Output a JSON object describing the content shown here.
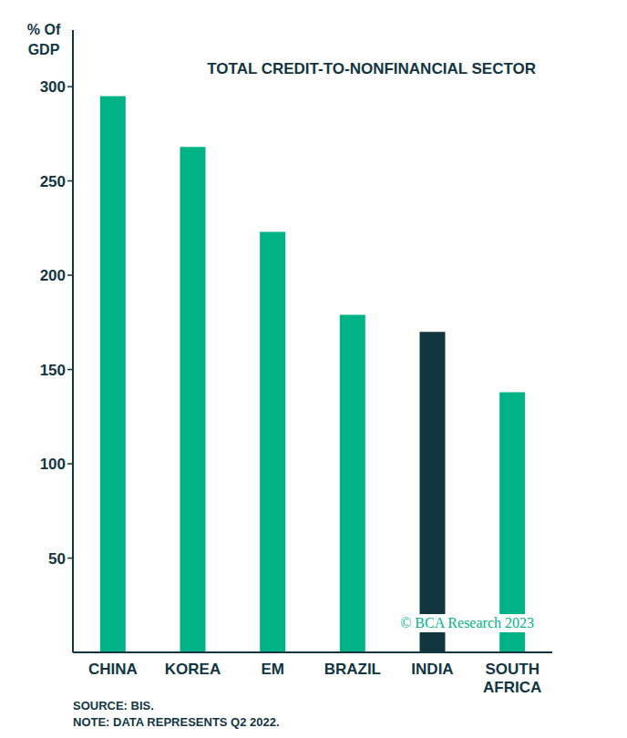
{
  "chart_data": {
    "type": "bar",
    "title": "TOTAL CREDIT-TO-NONFINANCIAL SECTOR",
    "y_label": "% Of GDP",
    "categories": [
      "CHINA",
      "KOREA",
      "EM",
      "BRAZIL",
      "INDIA",
      "SOUTH AFRICA"
    ],
    "values": [
      295,
      268,
      223,
      179,
      170,
      138
    ],
    "colors": [
      "#00b386",
      "#00b386",
      "#00b386",
      "#00b386",
      "#12363f",
      "#00b386"
    ],
    "ylim": [
      0,
      330
    ],
    "yticks": [
      50,
      100,
      150,
      200,
      250,
      300
    ],
    "grid": false,
    "data_labels": false,
    "source": "SOURCE: BIS.",
    "note": "NOTE: DATA REPRESENTS Q2 2022.",
    "copyright": "© BCA Research 2023"
  }
}
